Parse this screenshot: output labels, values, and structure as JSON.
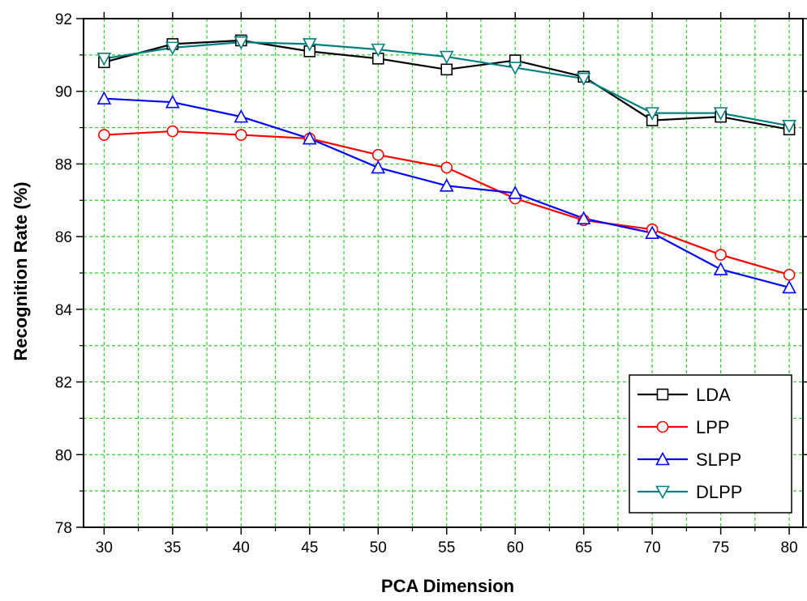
{
  "chart_data": {
    "type": "line",
    "xlabel": "PCA Dimension",
    "ylabel": "Recognition Rate (%)",
    "xlim": [
      28.5,
      81
    ],
    "ylim": [
      78,
      92
    ],
    "x_ticks": [
      30,
      35,
      40,
      45,
      50,
      55,
      60,
      65,
      70,
      75,
      80
    ],
    "y_ticks": [
      78,
      80,
      82,
      84,
      86,
      88,
      90,
      92
    ],
    "grid": true,
    "grid_style": "dashed",
    "grid_color": "#33cc33",
    "legend_position": "bottom-right",
    "x": [
      30,
      35,
      40,
      45,
      50,
      55,
      60,
      65,
      70,
      75,
      80
    ],
    "series": [
      {
        "name": "LDA",
        "color": "#000000",
        "marker": "square",
        "values": [
          90.8,
          91.3,
          91.4,
          91.1,
          90.9,
          90.6,
          90.85,
          90.4,
          89.2,
          89.3,
          88.95
        ]
      },
      {
        "name": "LPP",
        "color": "#ff0000",
        "marker": "circle",
        "values": [
          88.8,
          88.9,
          88.8,
          88.7,
          88.25,
          87.9,
          87.05,
          86.45,
          86.2,
          85.5,
          84.95
        ]
      },
      {
        "name": "SLPP",
        "color": "#0000ff",
        "marker": "triangle-up",
        "values": [
          89.8,
          89.7,
          89.3,
          88.7,
          87.9,
          87.4,
          87.2,
          86.5,
          86.1,
          85.1,
          84.6
        ]
      },
      {
        "name": "DLPP",
        "color": "#008080",
        "marker": "triangle-down",
        "values": [
          90.9,
          91.2,
          91.35,
          91.3,
          91.15,
          90.95,
          90.65,
          90.35,
          89.4,
          89.4,
          89.05
        ]
      }
    ]
  }
}
